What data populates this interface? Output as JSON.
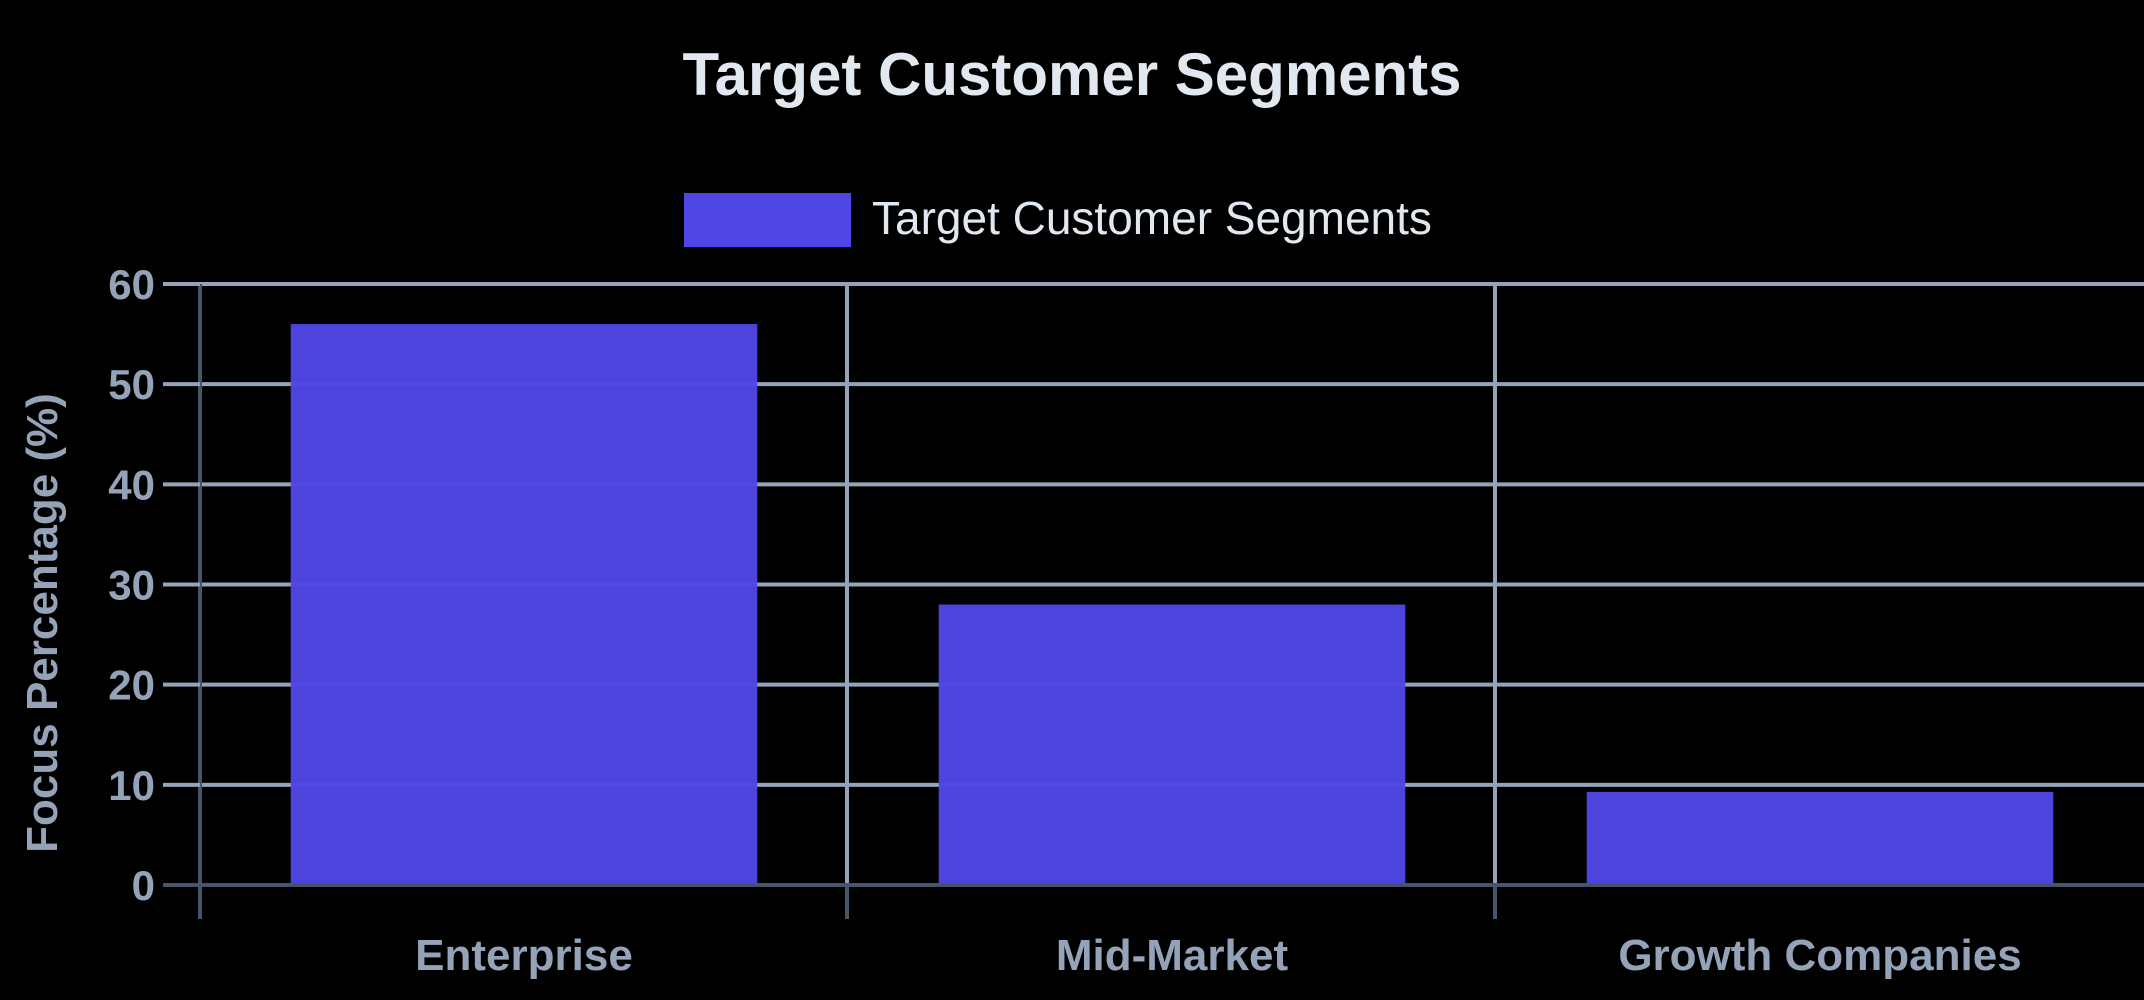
{
  "chart_data": {
    "type": "bar",
    "title": "Target Customer Segments",
    "xlabel": "",
    "ylabel": "Focus Percentage (%)",
    "categories": [
      "Enterprise",
      "Mid-Market",
      "Growth Companies"
    ],
    "series": [
      {
        "name": "Target Customer Segments",
        "values": [
          56,
          28,
          9.3
        ]
      }
    ],
    "ylim": [
      0,
      60
    ],
    "yticks": [
      0,
      10,
      20,
      30,
      40,
      50,
      60
    ],
    "grid": true,
    "legend_position": "top-center",
    "colors": {
      "background": "#000000",
      "bar": "#4f46e5",
      "grid": "#94a3b8",
      "axis": "#475569",
      "title": "#e2e8f0",
      "labels": "#94a3b8"
    }
  }
}
